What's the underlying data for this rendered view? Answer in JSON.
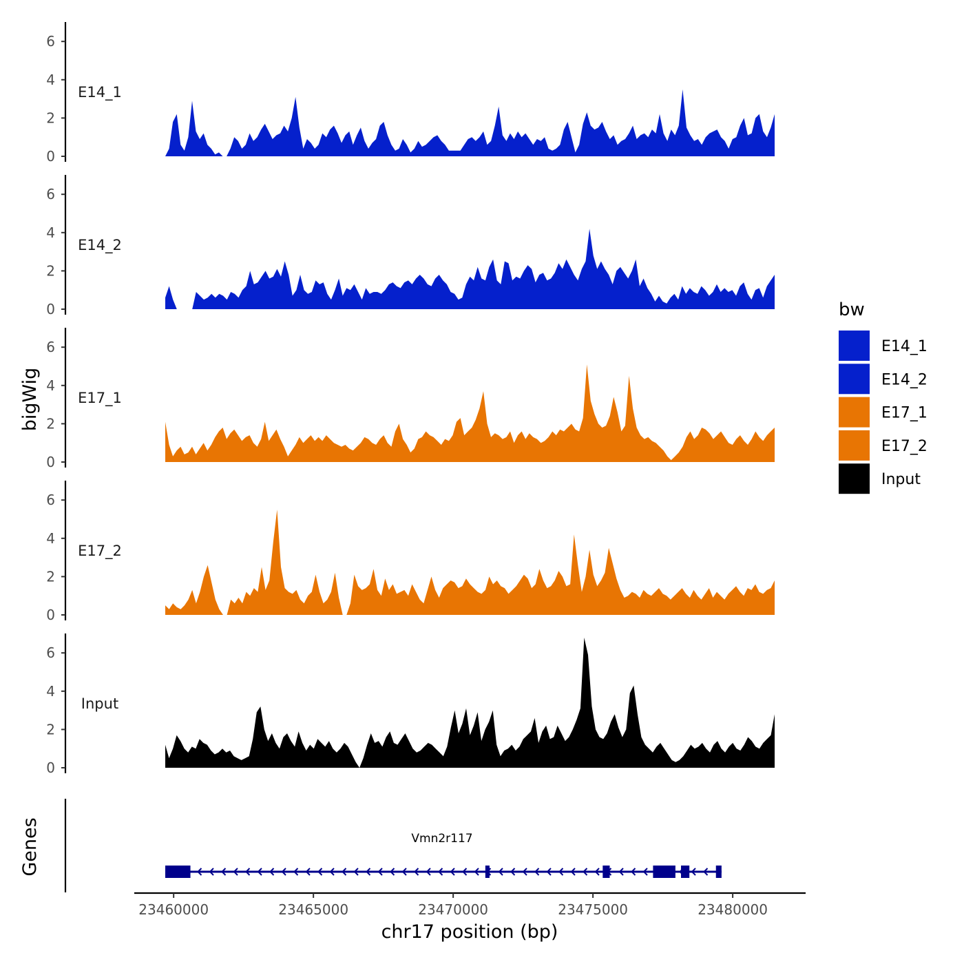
{
  "chart_data": {
    "type": "area",
    "xlabel": "chr17 position (bp)",
    "ylabel": "bigWig",
    "genes_label": "Genes",
    "x_range": [
      23459700,
      23481500
    ],
    "x_ticks": [
      23460000,
      23465000,
      23470000,
      23475000,
      23480000
    ],
    "x_tick_labels": [
      "23460000",
      "23465000",
      "23470000",
      "23475000",
      "23480000"
    ],
    "y_range": [
      0,
      7
    ],
    "y_ticks": [
      0,
      2,
      4,
      6
    ],
    "y_tick_labels": [
      "0",
      "2",
      "4",
      "6"
    ],
    "legend": {
      "title": "bw",
      "entries": [
        {
          "label": "E14_1",
          "color": "#0520CC"
        },
        {
          "label": "E14_2",
          "color": "#0520CC"
        },
        {
          "label": "E17_1",
          "color": "#E87503"
        },
        {
          "label": "E17_2",
          "color": "#E87503"
        },
        {
          "label": "Input",
          "color": "#000000"
        }
      ]
    },
    "series": [
      {
        "name": "E14_1",
        "color": "#0520CC",
        "x_start": 23459700,
        "x_end": 23481500,
        "values": [
          0,
          0.4,
          1.8,
          2.2,
          0.6,
          0.3,
          1.0,
          2.9,
          1.3,
          0.9,
          1.2,
          0.6,
          0.4,
          0.1,
          0.2,
          0,
          0,
          0.4,
          1.0,
          0.8,
          0.4,
          0.6,
          1.2,
          0.8,
          1.0,
          1.4,
          1.7,
          1.3,
          0.9,
          1.1,
          1.2,
          1.6,
          1.3,
          2.0,
          3.1,
          1.5,
          0.4,
          0.9,
          0.7,
          0.4,
          0.6,
          1.2,
          1.0,
          1.4,
          1.6,
          1.2,
          0.7,
          1.1,
          1.3,
          0.6,
          1.1,
          1.5,
          0.8,
          0.4,
          0.7,
          0.9,
          1.6,
          1.8,
          1.1,
          0.6,
          0.3,
          0.4,
          0.9,
          0.6,
          0.2,
          0.4,
          0.8,
          0.5,
          0.6,
          0.8,
          1.0,
          1.1,
          0.8,
          0.6,
          0.3,
          0.3,
          0.3,
          0.3,
          0.6,
          0.9,
          1.0,
          0.8,
          1.0,
          1.3,
          0.6,
          0.8,
          1.6,
          2.6,
          1.1,
          0.8,
          1.2,
          0.9,
          1.3,
          1.0,
          1.2,
          0.9,
          0.6,
          0.9,
          0.8,
          1.0,
          0.4,
          0.3,
          0.4,
          0.6,
          1.4,
          1.8,
          1.0,
          0.2,
          0.6,
          1.7,
          2.3,
          1.6,
          1.4,
          1.5,
          1.8,
          1.3,
          0.9,
          1.1,
          0.6,
          0.8,
          0.9,
          1.2,
          1.6,
          0.9,
          1.1,
          1.2,
          1.0,
          1.4,
          1.2,
          2.2,
          1.2,
          0.8,
          1.4,
          1.1,
          1.6,
          3.5,
          1.5,
          1.1,
          0.8,
          0.9,
          0.6,
          1.0,
          1.2,
          1.3,
          1.4,
          1.0,
          0.8,
          0.4,
          0.9,
          1.0,
          1.6,
          2.0,
          1.1,
          1.2,
          2.0,
          2.2,
          1.3,
          1.0,
          1.5,
          2.2
        ]
      },
      {
        "name": "E14_2",
        "color": "#0520CC",
        "x_start": 23459700,
        "x_end": 23481500,
        "values": [
          0.6,
          1.2,
          0.5,
          0,
          0,
          0,
          0,
          0,
          0.9,
          0.7,
          0.5,
          0.6,
          0.8,
          0.6,
          0.8,
          0.7,
          0.5,
          0.9,
          0.8,
          0.6,
          1.0,
          1.2,
          2.0,
          1.3,
          1.4,
          1.7,
          2.0,
          1.6,
          1.7,
          2.1,
          1.7,
          2.5,
          1.8,
          0.7,
          1.0,
          1.8,
          1.0,
          0.8,
          0.9,
          1.5,
          1.3,
          1.4,
          0.8,
          0.5,
          1.0,
          1.6,
          0.7,
          1.1,
          1.0,
          1.3,
          0.9,
          0.5,
          1.1,
          0.8,
          0.9,
          0.9,
          0.8,
          1.0,
          1.3,
          1.4,
          1.2,
          1.1,
          1.4,
          1.5,
          1.3,
          1.6,
          1.8,
          1.6,
          1.3,
          1.2,
          1.6,
          1.8,
          1.5,
          1.3,
          0.9,
          0.8,
          0.5,
          0.6,
          1.3,
          1.7,
          1.5,
          2.2,
          1.6,
          1.5,
          2.2,
          2.6,
          1.5,
          1.3,
          2.5,
          2.4,
          1.5,
          1.7,
          1.6,
          2.0,
          2.3,
          2.1,
          1.4,
          1.8,
          1.9,
          1.5,
          1.6,
          1.9,
          2.4,
          2.1,
          2.6,
          2.2,
          1.8,
          1.5,
          2.1,
          2.5,
          4.2,
          2.8,
          2.1,
          2.5,
          2.1,
          1.8,
          1.3,
          2.0,
          2.2,
          1.9,
          1.6,
          2.0,
          2.6,
          1.2,
          1.6,
          1.1,
          0.8,
          0.4,
          0.7,
          0.4,
          0.3,
          0.6,
          0.8,
          0.5,
          1.2,
          0.8,
          1.1,
          0.9,
          0.8,
          1.2,
          1.0,
          0.7,
          0.9,
          1.3,
          0.9,
          1.1,
          0.9,
          1.0,
          0.7,
          1.2,
          1.4,
          0.8,
          0.5,
          1.0,
          1.1,
          0.6,
          1.2,
          1.5,
          1.8
        ]
      },
      {
        "name": "E17_1",
        "color": "#E87503",
        "x_start": 23459700,
        "x_end": 23481500,
        "values": [
          2.1,
          0.9,
          0.3,
          0.6,
          0.8,
          0.4,
          0.5,
          0.8,
          0.4,
          0.7,
          1.0,
          0.6,
          0.9,
          1.3,
          1.6,
          1.8,
          1.2,
          1.5,
          1.7,
          1.4,
          1.1,
          1.3,
          1.4,
          1.0,
          0.8,
          1.2,
          2.1,
          1.1,
          1.4,
          1.7,
          1.2,
          0.8,
          0.3,
          0.6,
          0.9,
          1.3,
          1.0,
          1.2,
          1.4,
          1.1,
          1.3,
          1.1,
          1.4,
          1.2,
          1.0,
          0.9,
          0.8,
          0.9,
          0.7,
          0.6,
          0.8,
          1.0,
          1.3,
          1.2,
          1.0,
          0.9,
          1.2,
          1.4,
          1.0,
          0.8,
          1.6,
          2.0,
          1.2,
          0.9,
          0.5,
          0.7,
          1.2,
          1.3,
          1.6,
          1.4,
          1.3,
          1.1,
          0.9,
          1.2,
          1.1,
          1.4,
          2.1,
          2.3,
          1.4,
          1.6,
          1.8,
          2.2,
          2.8,
          3.7,
          2.0,
          1.3,
          1.5,
          1.4,
          1.2,
          1.3,
          1.6,
          1.0,
          1.4,
          1.6,
          1.2,
          1.5,
          1.3,
          1.2,
          1.0,
          1.1,
          1.3,
          1.6,
          1.4,
          1.7,
          1.6,
          1.8,
          2.0,
          1.7,
          1.6,
          2.3,
          5.1,
          3.2,
          2.5,
          2.0,
          1.8,
          1.9,
          2.4,
          3.4,
          2.6,
          1.6,
          1.9,
          4.5,
          2.8,
          1.8,
          1.4,
          1.2,
          1.3,
          1.1,
          1.0,
          0.8,
          0.6,
          0.3,
          0.1,
          0.3,
          0.5,
          0.8,
          1.3,
          1.6,
          1.2,
          1.4,
          1.8,
          1.7,
          1.5,
          1.2,
          1.4,
          1.6,
          1.3,
          1.0,
          0.9,
          1.2,
          1.4,
          1.1,
          0.9,
          1.2,
          1.6,
          1.3,
          1.1,
          1.4,
          1.6,
          1.8
        ]
      },
      {
        "name": "E17_2",
        "color": "#E87503",
        "x_start": 23459700,
        "x_end": 23481500,
        "values": [
          0.5,
          0.3,
          0.6,
          0.4,
          0.3,
          0.5,
          0.8,
          1.3,
          0.6,
          1.2,
          2.0,
          2.6,
          1.7,
          0.8,
          0.3,
          0,
          0,
          0.8,
          0.6,
          0.9,
          0.6,
          1.2,
          1.0,
          1.4,
          1.2,
          2.5,
          1.3,
          1.8,
          3.8,
          5.5,
          2.5,
          1.4,
          1.2,
          1.1,
          1.3,
          0.8,
          0.6,
          1.0,
          1.2,
          2.1,
          1.2,
          0.6,
          0.8,
          1.2,
          2.2,
          0.9,
          0,
          0,
          0.6,
          2.1,
          1.5,
          1.3,
          1.4,
          1.6,
          2.4,
          1.3,
          1.0,
          1.9,
          1.3,
          1.6,
          1.1,
          1.2,
          1.3,
          1.0,
          1.6,
          1.2,
          0.8,
          0.6,
          1.3,
          2.0,
          1.3,
          0.9,
          1.4,
          1.6,
          1.8,
          1.7,
          1.4,
          1.5,
          1.9,
          1.6,
          1.4,
          1.2,
          1.1,
          1.3,
          2.0,
          1.6,
          1.8,
          1.5,
          1.4,
          1.1,
          1.3,
          1.5,
          1.8,
          2.1,
          1.9,
          1.4,
          1.6,
          2.4,
          1.8,
          1.4,
          1.5,
          1.8,
          2.3,
          2.0,
          1.5,
          1.6,
          4.2,
          2.6,
          1.2,
          2.0,
          3.4,
          2.1,
          1.5,
          1.8,
          2.2,
          3.5,
          2.7,
          1.9,
          1.3,
          0.9,
          1.0,
          1.2,
          1.1,
          0.9,
          1.3,
          1.1,
          1.0,
          1.2,
          1.4,
          1.1,
          1.0,
          0.8,
          1.0,
          1.2,
          1.4,
          1.1,
          0.9,
          1.3,
          1.0,
          0.8,
          1.1,
          1.4,
          0.9,
          1.2,
          1.0,
          0.8,
          1.1,
          1.3,
          1.5,
          1.2,
          1.0,
          1.4,
          1.3,
          1.6,
          1.2,
          1.1,
          1.3,
          1.4,
          1.8
        ]
      },
      {
        "name": "Input",
        "color": "#000000",
        "x_start": 23459700,
        "x_end": 23481500,
        "values": [
          1.2,
          0.5,
          1.0,
          1.7,
          1.4,
          1.0,
          0.8,
          1.1,
          1.0,
          1.5,
          1.3,
          1.2,
          0.9,
          0.7,
          0.8,
          1.0,
          0.8,
          0.9,
          0.6,
          0.5,
          0.4,
          0.5,
          0.6,
          1.5,
          2.9,
          3.2,
          2.0,
          1.4,
          1.8,
          1.3,
          1.0,
          1.6,
          1.8,
          1.4,
          1.1,
          1.9,
          1.3,
          0.9,
          1.2,
          1.0,
          1.5,
          1.3,
          1.1,
          1.4,
          1.0,
          0.8,
          1.0,
          1.3,
          1.1,
          0.7,
          0.3,
          0,
          0.5,
          1.2,
          1.8,
          1.3,
          1.4,
          1.1,
          1.6,
          1.9,
          1.3,
          1.2,
          1.5,
          1.8,
          1.4,
          1.0,
          0.8,
          0.9,
          1.1,
          1.3,
          1.2,
          1.0,
          0.8,
          0.6,
          1.1,
          2.1,
          3.0,
          1.8,
          2.3,
          3.1,
          1.7,
          2.2,
          2.9,
          1.4,
          2.0,
          2.4,
          3.0,
          1.2,
          0.6,
          0.9,
          1.0,
          1.2,
          0.9,
          1.1,
          1.5,
          1.7,
          1.9,
          2.6,
          1.3,
          1.9,
          2.2,
          1.5,
          1.6,
          2.2,
          1.8,
          1.4,
          1.6,
          2.0,
          2.5,
          3.1,
          6.8,
          5.9,
          3.2,
          2.0,
          1.6,
          1.5,
          1.8,
          2.4,
          2.8,
          2.1,
          1.6,
          2.0,
          3.9,
          4.3,
          2.8,
          1.6,
          1.2,
          1.0,
          0.8,
          1.1,
          1.3,
          1.0,
          0.7,
          0.4,
          0.3,
          0.4,
          0.6,
          0.9,
          1.2,
          1.0,
          1.1,
          1.3,
          1.0,
          0.8,
          1.2,
          1.4,
          1.0,
          0.8,
          1.1,
          1.3,
          1.0,
          0.9,
          1.2,
          1.6,
          1.4,
          1.1,
          1.0,
          1.3,
          1.5,
          1.7,
          2.8
        ]
      }
    ],
    "gene": {
      "name": "Vmn2r117",
      "color": "#00008B",
      "strand": "-",
      "start": 23459700,
      "end": 23479600,
      "exons": [
        [
          23459700,
          23460600
        ],
        [
          23471150,
          23471300
        ],
        [
          23475350,
          23475600
        ],
        [
          23477150,
          23477950
        ],
        [
          23478150,
          23478450
        ],
        [
          23479400,
          23479600
        ]
      ]
    }
  }
}
